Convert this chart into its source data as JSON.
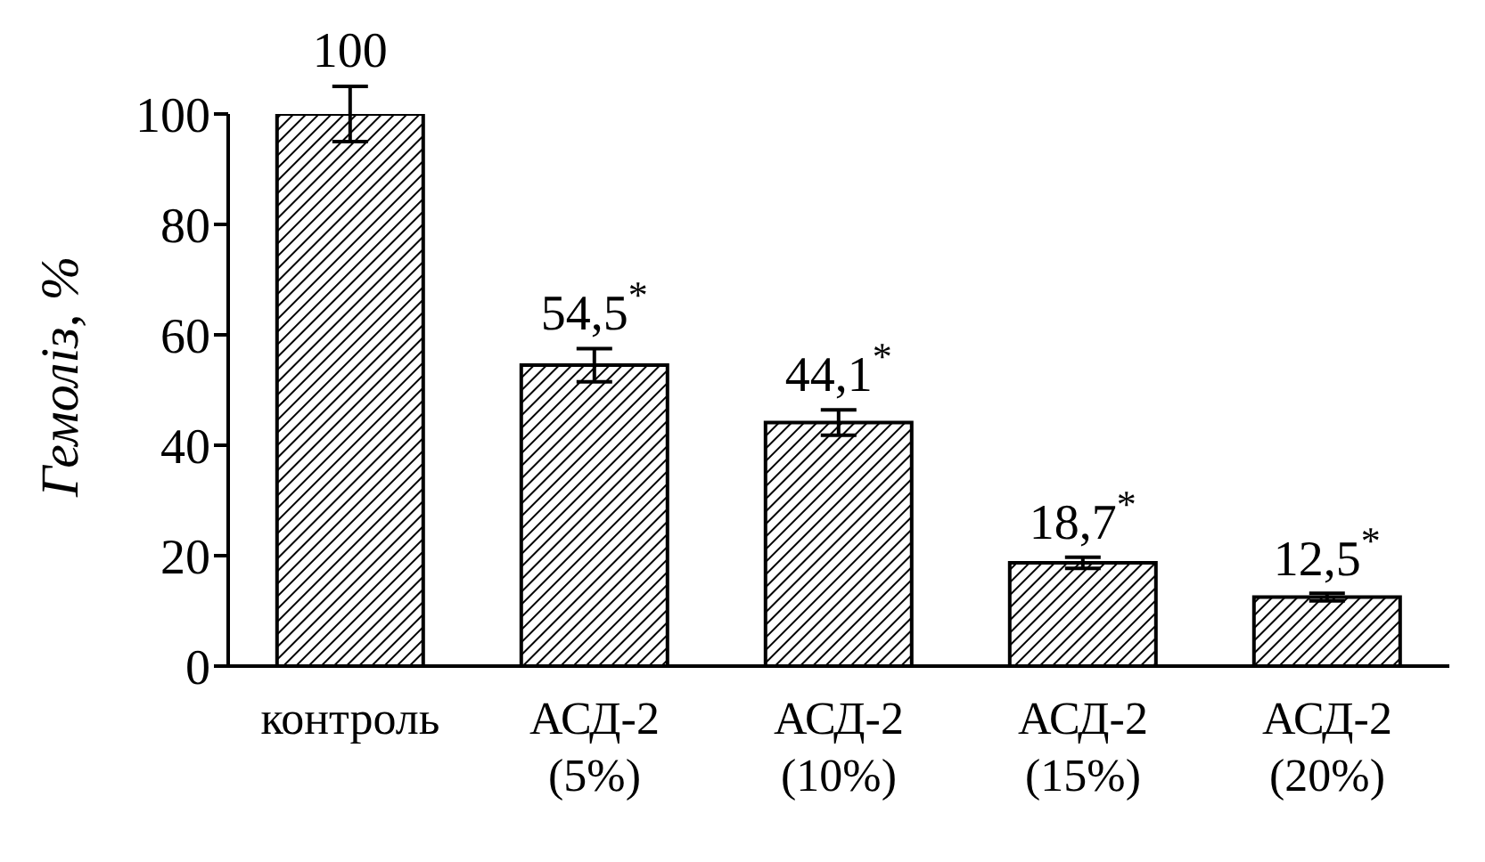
{
  "chart_data": {
    "type": "bar",
    "ylabel": "Гемоліз, %",
    "categories": [
      "контроль",
      "АСД-2\n(5%)",
      "АСД-2\n(10%)",
      "АСД-2\n(15%)",
      "АСД-2\n(20%)"
    ],
    "values": [
      100,
      54.5,
      44.1,
      18.7,
      12.5
    ],
    "errors": [
      5,
      3,
      2.3,
      1,
      0.7
    ],
    "value_labels": [
      "100",
      "54,5$^{*}$",
      "44,1$^{*}$",
      "18,7$^{*}$",
      "12,5$^{*}$"
    ],
    "color": "#000000",
    "ylim": [
      0,
      100
    ],
    "yticks": [
      0,
      20,
      40,
      60,
      80,
      100
    ],
    "grid": false,
    "legend": false
  }
}
